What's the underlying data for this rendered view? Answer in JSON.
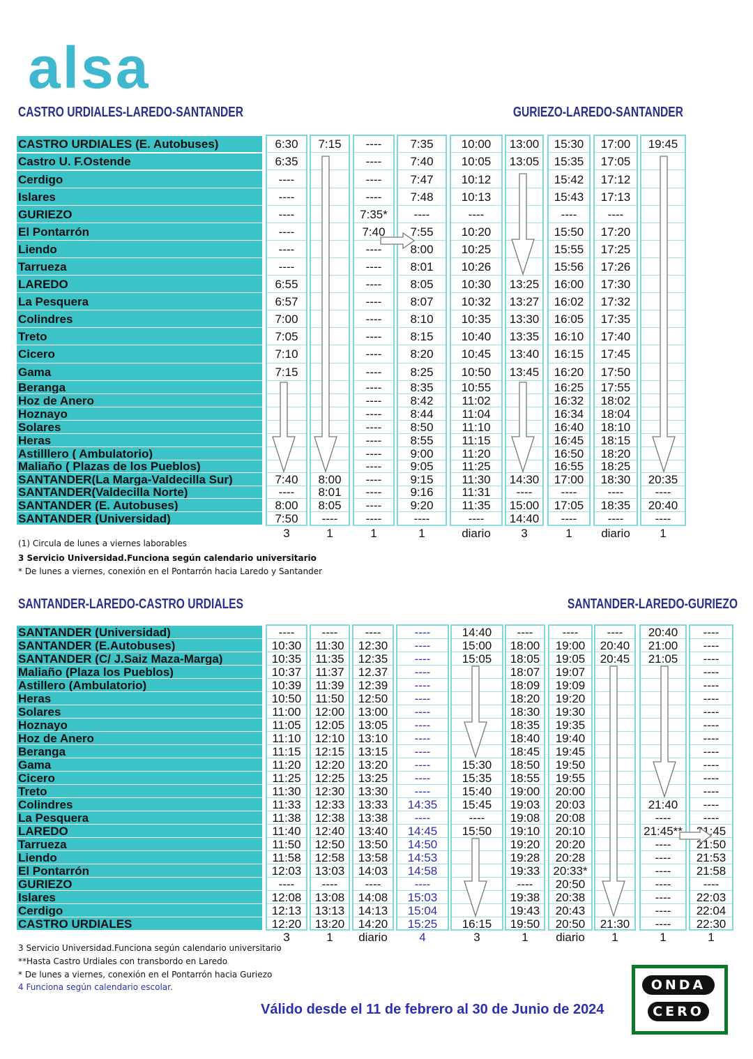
{
  "brand": "alsa",
  "table1": {
    "title_left": "CASTRO URDIALES-LAREDO-SANTANDER",
    "title_right": "GURIEZO-LAREDO-SANTANDER",
    "stops": [
      "CASTRO URDIALES (E. Autobuses)",
      "Castro U. F.Ostende",
      "Cerdigo",
      "Islares",
      "GURIEZO",
      "El Pontarrón",
      "Liendo",
      "Tarrueza",
      "LAREDO",
      "La Pesquera",
      "Colindres",
      "Treto",
      "Cicero",
      "Gama",
      "Beranga",
      "Hoz de Anero",
      "Hoznayo",
      "Solares",
      "Heras",
      "Astilllero ( Ambulatorio)",
      "Maliaño ( Plazas de los Pueblos)",
      "SANTANDER(La Marga-Valdecilla Sur)",
      "SANTANDER(Valdecilla Norte)",
      "SANTANDER (E. Autobuses)",
      "SANTANDER (Universidad)"
    ],
    "columns": [
      {
        "times": [
          "6:30",
          "6:35",
          "----",
          "----",
          "----",
          "----",
          "----",
          "----",
          "6:55",
          "6:57",
          "7:00",
          "7:05",
          "7:10",
          "7:15",
          "",
          "",
          "",
          "",
          "",
          "",
          "",
          "7:40",
          "----",
          "8:00",
          "7:50"
        ],
        "footer": "3"
      },
      {
        "times": [
          "7:15",
          "",
          "",
          "",
          "",
          "",
          "",
          "",
          "",
          "",
          "",
          "",
          "",
          "",
          "",
          "",
          "",
          "",
          "",
          "",
          "",
          "8:00",
          "8:01",
          "8:05",
          "----"
        ],
        "footer": "1"
      },
      {
        "times": [
          "----",
          "----",
          "----",
          "----",
          "7:35*",
          "7:40",
          "----",
          "----",
          "----",
          "----",
          "----",
          "----",
          "----",
          "----",
          "----",
          "----",
          "----",
          "----",
          "----",
          "----",
          "----",
          "----",
          "----",
          "----",
          "----"
        ],
        "footer": "1"
      },
      {
        "times": [
          "7:35",
          "7:40",
          "7:47",
          "7:48",
          "----",
          "7:55",
          "8:00",
          "8:01",
          "8:05",
          "8:07",
          "8:10",
          "8:15",
          "8:20",
          "8:25",
          "8:35",
          "8:42",
          "8:44",
          "8:50",
          "8:55",
          "9:00",
          "9:05",
          "9:15",
          "9:16",
          "9:20",
          "----"
        ],
        "footer": "1"
      },
      {
        "times": [
          "10:00",
          "10:05",
          "10:12",
          "10:13",
          "----",
          "10:20",
          "10:25",
          "10:26",
          "10:30",
          "10:32",
          "10:35",
          "10:40",
          "10:45",
          "10:50",
          "10:55",
          "11:02",
          "11:04",
          "11:10",
          "11:15",
          "11:20",
          "11:25",
          "11:30",
          "11:31",
          "11:35",
          "----"
        ],
        "footer": "diario"
      },
      {
        "times": [
          "13:00",
          "13:05",
          "",
          "",
          "",
          "",
          "",
          "",
          "13:25",
          "13:27",
          "13:30",
          "13:35",
          "13:40",
          "13:45",
          "",
          "",
          "",
          "",
          "",
          "",
          "",
          "14:30",
          "----",
          "15:00",
          "14:40"
        ],
        "footer": "3"
      },
      {
        "times": [
          "15:30",
          "15:35",
          "15:42",
          "15:43",
          "----",
          "15:50",
          "15:55",
          "15:56",
          "16:00",
          "16:02",
          "16:05",
          "16:10",
          "16:15",
          "16:20",
          "16:25",
          "16:32",
          "16:34",
          "16:40",
          "16:45",
          "16:50",
          "16:55",
          "17:00",
          "----",
          "17:05",
          "----"
        ],
        "footer": "1"
      },
      {
        "times": [
          "17:00",
          "17:05",
          "17:12",
          "17:13",
          "----",
          "17:20",
          "17:25",
          "17:26",
          "17:30",
          "17:32",
          "17:35",
          "17:40",
          "17:45",
          "17:50",
          "17:55",
          "18:02",
          "18:04",
          "18:10",
          "18:15",
          "18:20",
          "18:25",
          "18:30",
          "----",
          "18:35",
          "----"
        ],
        "footer": "diario"
      },
      {
        "times": [
          "19:45",
          "",
          "",
          "",
          "",
          "",
          "",
          "",
          "",
          "",
          "",
          "",
          "",
          "",
          "",
          "",
          "",
          "",
          "",
          "",
          "",
          "20:35",
          "----",
          "20:40",
          "----"
        ],
        "footer": "1"
      }
    ],
    "notes": [
      "(1) Circula de lunes a viernes laborables",
      "3  Servicio Universidad.Funciona según calendario universitario",
      "* De lunes a viernes, conexión en el Pontarrón hacia Laredo y Santander"
    ]
  },
  "table2": {
    "title_left": "SANTANDER-LAREDO-CASTRO URDIALES",
    "title_right": "SANTANDER-LAREDO-GURIEZO",
    "stops": [
      "SANTANDER (Universidad)",
      "SANTANDER (E.Autobuses)",
      "SANTANDER (C/ J.Saiz Maza-Marga)",
      "Maliaño (Plaza los Pueblos)",
      "Astillero (Ambulatorio)",
      "Heras",
      "Solares",
      "Hoznayo",
      "Hoz de Anero",
      "Beranga",
      "Gama",
      "Cicero",
      "Treto",
      "Colindres",
      "La Pesquera",
      "LAREDO",
      "Tarrueza",
      "Liendo",
      "El Pontarrón",
      "GURIEZO",
      "Islares",
      "Cerdigo",
      "CASTRO URDIALES"
    ],
    "columns": [
      {
        "times": [
          "----",
          "10:30",
          "10:35",
          "10:37",
          "10:39",
          "10:50",
          "11:00",
          "11:05",
          "11:10",
          "11:15",
          "11:20",
          "11:25",
          "11:30",
          "11:33",
          "11:38",
          "11:40",
          "11:50",
          "11:58",
          "12:03",
          "----",
          "12:08",
          "12:13",
          "12:20"
        ],
        "footer": "3"
      },
      {
        "times": [
          "----",
          "11:30",
          "11:35",
          "11:37",
          "11:39",
          "11:50",
          "12:00",
          "12:05",
          "12:10",
          "12:15",
          "12:20",
          "12:25",
          "12:30",
          "12:33",
          "12:38",
          "12:40",
          "12:50",
          "12:58",
          "13:03",
          "----",
          "13:08",
          "13:13",
          "13:20"
        ],
        "footer": "1"
      },
      {
        "times": [
          "----",
          "12:30",
          "12:35",
          "12.37",
          "12:39",
          "12:50",
          "13:00",
          "13:05",
          "13:10",
          "13:15",
          "13:20",
          "13:25",
          "13:30",
          "13:33",
          "13:38",
          "13:40",
          "13:50",
          "13:58",
          "14:03",
          "----",
          "14:08",
          "14:13",
          "14:20"
        ],
        "footer": "diario"
      },
      {
        "times": [
          "----",
          "----",
          "----",
          "----",
          "----",
          "----",
          "----",
          "----",
          "----",
          "----",
          "----",
          "----",
          "----",
          "14:35",
          "----",
          "14:45",
          "14:50",
          "14:53",
          "14:58",
          "----",
          "15:03",
          "15:04",
          "15:25"
        ],
        "footer": "4"
      },
      {
        "times": [
          "14:40",
          "15:00",
          "15:05",
          "",
          "",
          "",
          "",
          "",
          "",
          "",
          "15:30",
          "15:35",
          "15:40",
          "15:45",
          "----",
          "15:50",
          "",
          "",
          "",
          "",
          "",
          "",
          "16:15"
        ],
        "footer": "3"
      },
      {
        "times": [
          "----",
          "18:00",
          "18:05",
          "18:07",
          "18:09",
          "18:20",
          "18:30",
          "18:35",
          "18:40",
          "18:45",
          "18:50",
          "18:55",
          "19:00",
          "19:03",
          "19:08",
          "19:10",
          "19:20",
          "19:28",
          "19:33",
          "----",
          "19:38",
          "19:43",
          "19:50"
        ],
        "footer": "1"
      },
      {
        "times": [
          "----",
          "19:00",
          "19:05",
          "19:07",
          "19:09",
          "19:20",
          "19:30",
          "19:35",
          "19:40",
          "19:45",
          "19:50",
          "19:55",
          "20:00",
          "20:03",
          "20:08",
          "20:10",
          "20:20",
          "20:28",
          "20:33*",
          "20:50",
          "20:38",
          "20:43",
          "20:50"
        ],
        "footer": "diario"
      },
      {
        "times": [
          "----",
          "20:40",
          "20:45",
          "",
          "",
          "",
          "",
          "",
          "",
          "",
          "",
          "",
          "",
          "",
          "",
          "",
          "",
          "",
          "",
          "",
          "",
          "",
          "21:30"
        ],
        "footer": "1"
      },
      {
        "times": [
          "20:40",
          "21:00",
          "21:05",
          "",
          "",
          "",
          "",
          "",
          "",
          "",
          "",
          "",
          "",
          "21:40",
          "----",
          "21:45**",
          "----",
          "----",
          "----",
          "----",
          "----",
          "----",
          "----"
        ],
        "footer": "1"
      },
      {
        "times": [
          "----",
          "----",
          "----",
          "----",
          "----",
          "----",
          "----",
          "----",
          "----",
          "----",
          "----",
          "----",
          "----",
          "----",
          "----",
          "21:45",
          "21:50",
          "21:53",
          "21:58",
          "----",
          "22:03",
          "22:04",
          "22:30"
        ],
        "footer": "1"
      }
    ],
    "notes": [
      "3  Servicio Universidad.Funciona según calendario universitario",
      "**Hasta Castro Urdiales con transbordo en Laredo",
      "* De lunes a viernes, conexión en el Pontarrón hacia Guriezo",
      "4 Funciona según calendario escolar."
    ]
  },
  "validity": "Válido desde el 11 de febrero al 30 de Junio de 2024",
  "badge": {
    "top": "ONDA",
    "bottom": "CERO",
    "color_bg": "#0a7a2a"
  },
  "colors": {
    "teal": "#3cc3c7",
    "logo": "#3fb8cf",
    "title": "#2b2f8a",
    "blue": "#2b2fb0"
  }
}
